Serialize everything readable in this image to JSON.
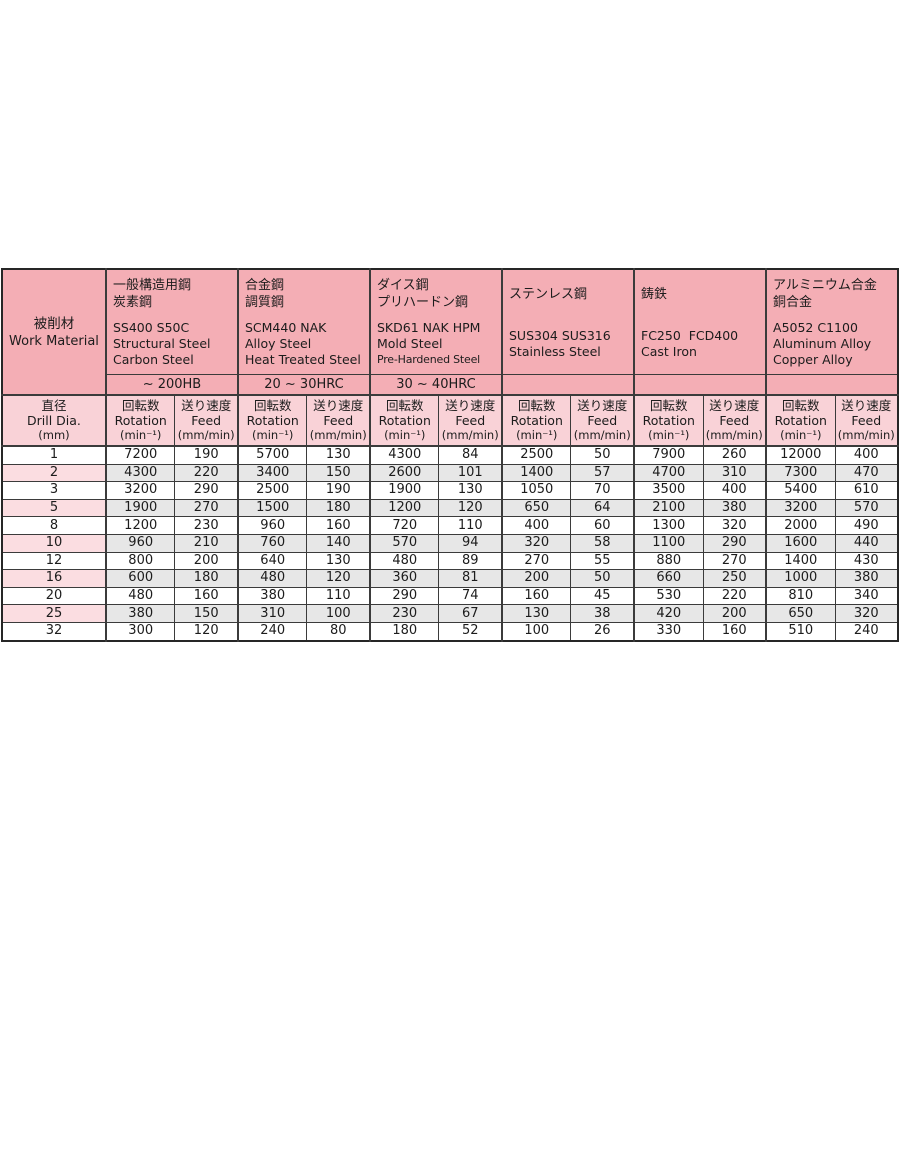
{
  "table": {
    "work_material": {
      "ja": "被削材",
      "en": "Work Material"
    },
    "dia_header": {
      "ja": "直径",
      "en": "Drill Dia.",
      "unit": "(mm)"
    },
    "sub_headers": {
      "rotation": {
        "ja": "回転数",
        "en": "Rotation",
        "unit": "(min⁻¹)"
      },
      "feed": {
        "ja": "送り速度",
        "en": "Feed",
        "unit": "(mm/min)"
      }
    },
    "materials": [
      {
        "ja": [
          "一般構造用鋼",
          "炭素鋼"
        ],
        "en": [
          "SS400 S50C",
          "Structural Steel",
          "Carbon Steel"
        ],
        "hardness": "~ 200HB"
      },
      {
        "ja": [
          "合金鋼",
          "調質鋼"
        ],
        "en": [
          "SCM440 NAK",
          "Alloy Steel",
          "Heat Treated Steel"
        ],
        "hardness": "20 ~ 30HRC"
      },
      {
        "ja": [
          "ダイス鋼",
          "プリハードン鋼"
        ],
        "en": [
          "SKD61 NAK HPM",
          "Mold Steel",
          "Pre-Hardened Steel"
        ],
        "hardness": "30 ~ 40HRC"
      },
      {
        "ja": [
          "ステンレス鋼"
        ],
        "en": [
          "SUS304 SUS316",
          "Stainless Steel"
        ],
        "hardness": ""
      },
      {
        "ja": [
          "鋳鉄"
        ],
        "en": [
          "FC250  FCD400",
          "Cast Iron"
        ],
        "hardness": ""
      },
      {
        "ja": [
          "アルミニウム合金",
          "銅合金"
        ],
        "en": [
          "A5052 C1100",
          "Aluminum Alloy",
          "Copper Alloy"
        ],
        "hardness": ""
      }
    ],
    "rows": [
      {
        "dia": "1",
        "highlight": false,
        "values": [
          7200,
          190,
          5700,
          130,
          4300,
          84,
          2500,
          50,
          7900,
          260,
          12000,
          400
        ]
      },
      {
        "dia": "2",
        "highlight": true,
        "values": [
          4300,
          220,
          3400,
          150,
          2600,
          101,
          1400,
          57,
          4700,
          310,
          7300,
          470
        ]
      },
      {
        "dia": "3",
        "highlight": false,
        "values": [
          3200,
          290,
          2500,
          190,
          1900,
          130,
          1050,
          70,
          3500,
          400,
          5400,
          610
        ]
      },
      {
        "dia": "5",
        "highlight": true,
        "values": [
          1900,
          270,
          1500,
          180,
          1200,
          120,
          650,
          64,
          2100,
          380,
          3200,
          570
        ]
      },
      {
        "dia": "8",
        "highlight": false,
        "values": [
          1200,
          230,
          960,
          160,
          720,
          110,
          400,
          60,
          1300,
          320,
          2000,
          490
        ]
      },
      {
        "dia": "10",
        "highlight": true,
        "values": [
          960,
          210,
          760,
          140,
          570,
          94,
          320,
          58,
          1100,
          290,
          1600,
          440
        ]
      },
      {
        "dia": "12",
        "highlight": false,
        "values": [
          800,
          200,
          640,
          130,
          480,
          89,
          270,
          55,
          880,
          270,
          1400,
          430
        ]
      },
      {
        "dia": "16",
        "highlight": true,
        "values": [
          600,
          180,
          480,
          120,
          360,
          81,
          200,
          50,
          660,
          250,
          1000,
          380
        ]
      },
      {
        "dia": "20",
        "highlight": false,
        "values": [
          480,
          160,
          380,
          110,
          290,
          74,
          160,
          45,
          530,
          220,
          810,
          340
        ]
      },
      {
        "dia": "25",
        "highlight": true,
        "values": [
          380,
          150,
          310,
          100,
          230,
          67,
          130,
          38,
          420,
          200,
          650,
          320
        ]
      },
      {
        "dia": "32",
        "highlight": false,
        "values": [
          300,
          120,
          240,
          80,
          180,
          52,
          100,
          26,
          330,
          160,
          510,
          240
        ]
      }
    ],
    "colors": {
      "header_pink": "#f4aeb5",
      "subheader_pink": "#f9d2d7",
      "highlight_pink": "#fbdde1",
      "row_gray": "#e7e7e7",
      "border": "#3b3b3b"
    }
  }
}
